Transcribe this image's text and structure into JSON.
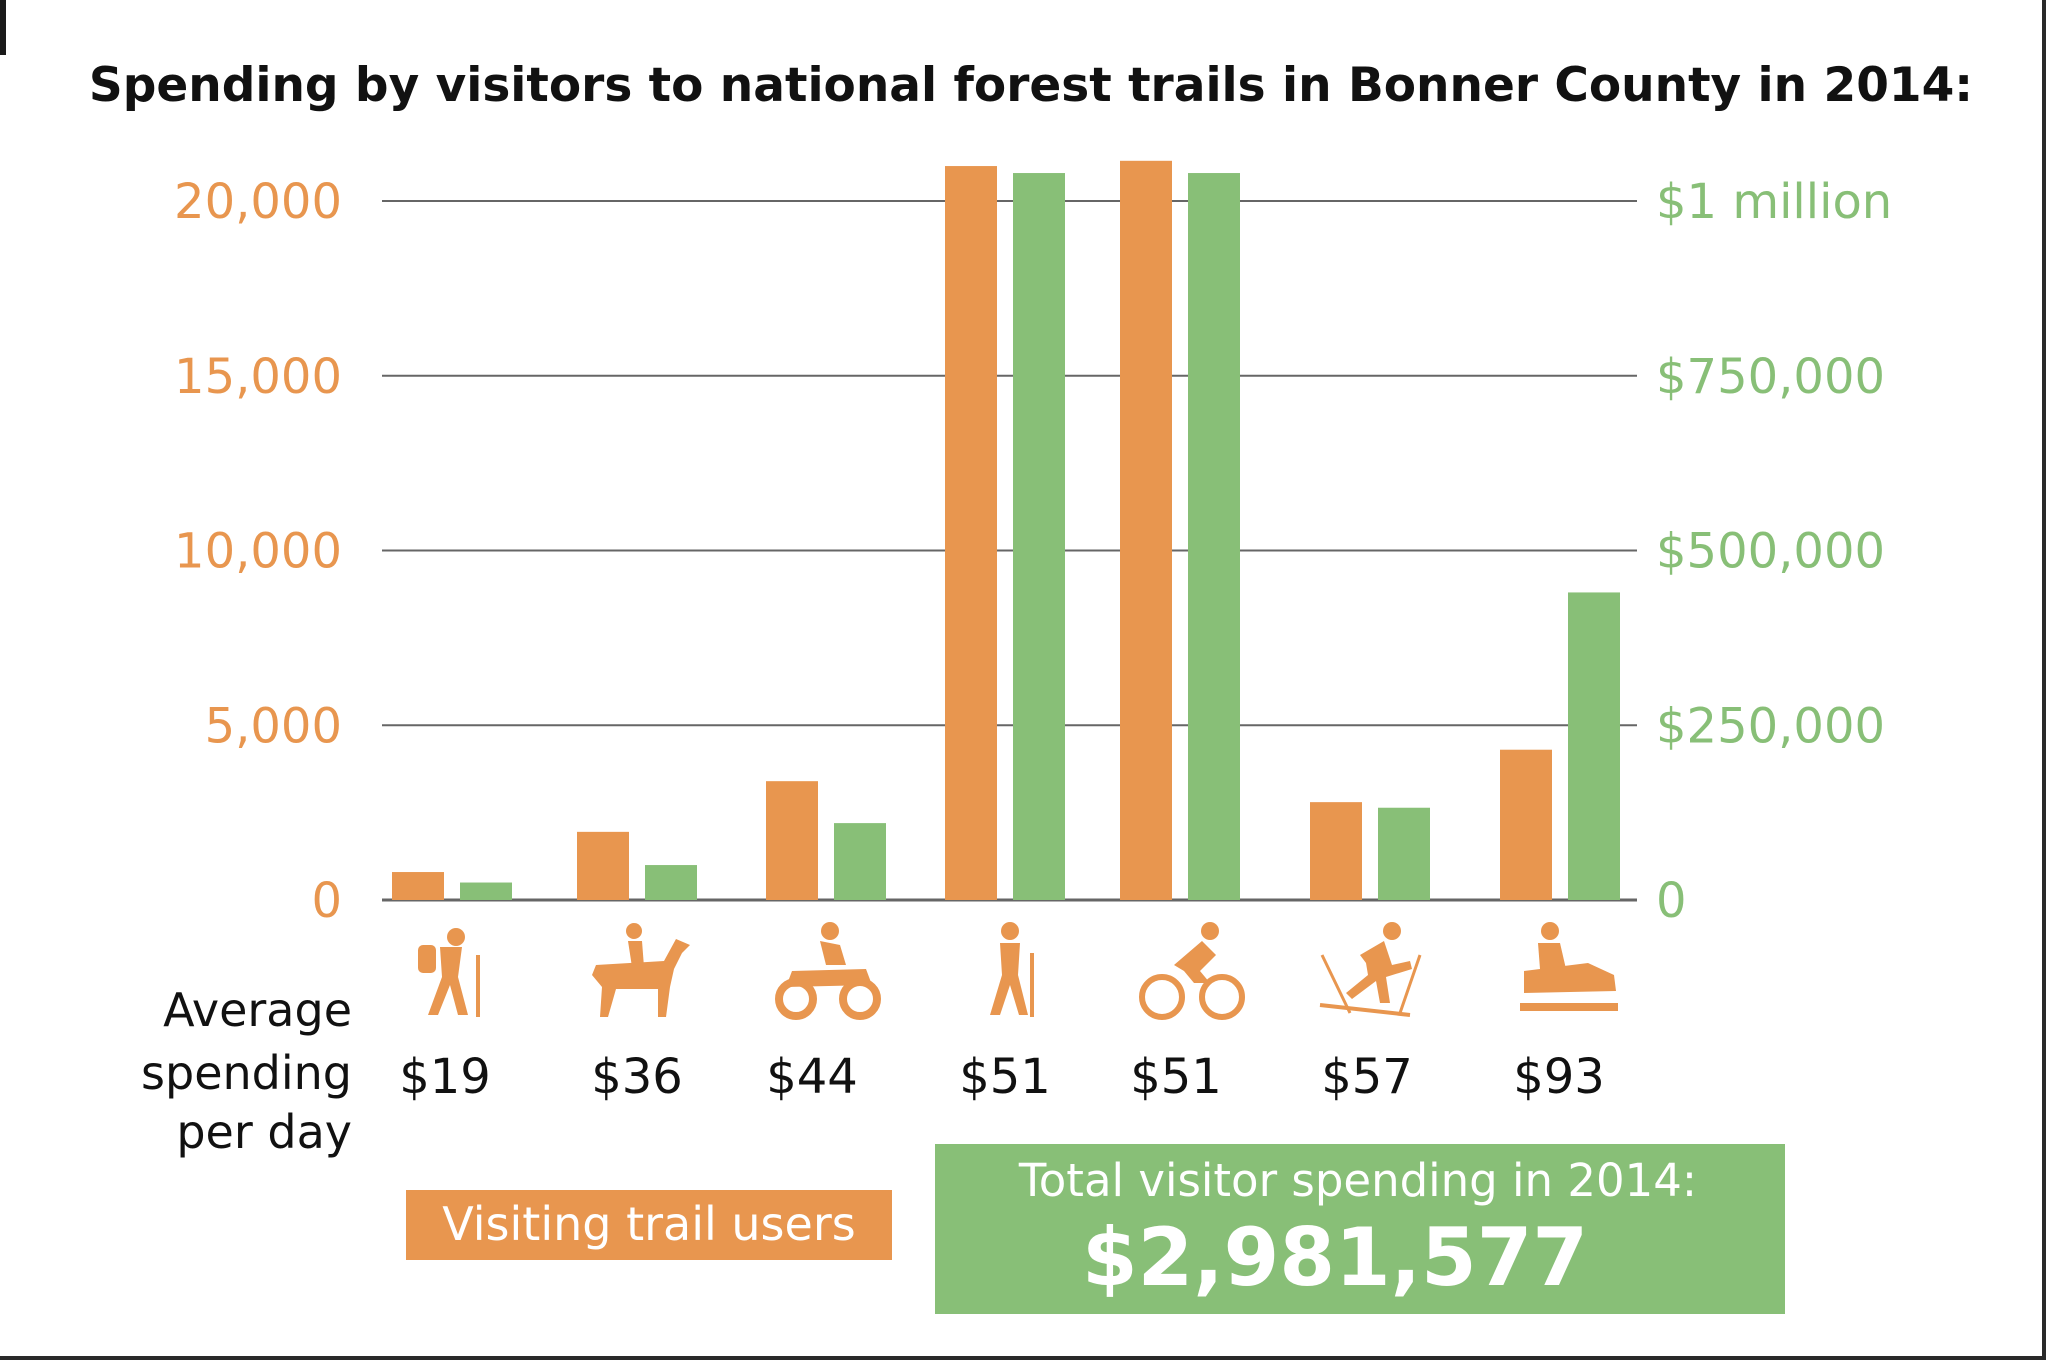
{
  "chart_data": {
    "type": "bar",
    "title": "Spending by visitors to national forest trails in Bonner County in 2014:",
    "categories": [
      "$19",
      "$36",
      "$44",
      "$51",
      "$51",
      "$57",
      "$93"
    ],
    "category_icons": [
      "hiker-backpack-icon",
      "horseback-rider-icon",
      "atv-rider-icon",
      "hiker-icon",
      "cyclist-icon",
      "cross-country-skier-icon",
      "snowmobile-icon"
    ],
    "row_label": [
      "Average",
      "spending",
      "per day"
    ],
    "series": [
      {
        "name": "Visiting trail users",
        "axis": "left",
        "color": "#e8964f",
        "values": [
          800,
          1950,
          3400,
          21000,
          21150,
          2800,
          4300
        ]
      },
      {
        "axis": "right",
        "color": "#88bf77",
        "values": [
          25000,
          50000,
          110000,
          1040000,
          1040000,
          132000,
          440000
        ]
      }
    ],
    "y_left": {
      "ylim": [
        0,
        20000
      ],
      "ticks": [
        0,
        5000,
        10000,
        15000,
        20000
      ],
      "tick_labels": [
        "0",
        "5,000",
        "10,000",
        "15,000",
        "20,000"
      ]
    },
    "y_right": {
      "ylim": [
        0,
        1000000
      ],
      "ticks": [
        0,
        250000,
        500000,
        750000,
        1000000
      ],
      "tick_labels": [
        "0",
        "$250,000",
        "$500,000",
        "$750,000",
        "$1 million"
      ]
    },
    "grid": true,
    "legend": {
      "position": "bottom-left",
      "label": "Visiting trail users"
    },
    "total_box": {
      "label": "Total visitor spending in 2014:",
      "value": "$2,981,577"
    }
  }
}
